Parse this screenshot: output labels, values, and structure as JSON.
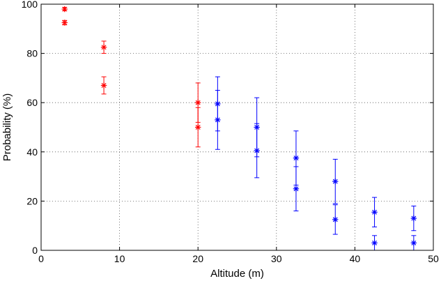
{
  "chart_data": {
    "type": "scatter",
    "xlabel": "Altitude (m)",
    "ylabel": "Probability (%)",
    "xlim": [
      0,
      50
    ],
    "ylim": [
      0,
      100
    ],
    "xticks": [
      0,
      10,
      20,
      30,
      40,
      50
    ],
    "yticks": [
      0,
      20,
      40,
      60,
      80,
      100
    ],
    "grid": true,
    "marker": "asterisk",
    "series": [
      {
        "color": "#ff0000",
        "points": [
          {
            "x": 3,
            "y": 98,
            "lo": 97.3,
            "hi": 98.7
          },
          {
            "x": 3,
            "y": 92.5,
            "lo": 91.6,
            "hi": 93.4
          },
          {
            "x": 8,
            "y": 82.5,
            "lo": 80,
            "hi": 85
          },
          {
            "x": 8,
            "y": 67,
            "lo": 63.5,
            "hi": 70.5
          },
          {
            "x": 20,
            "y": 60,
            "lo": 52,
            "hi": 68
          },
          {
            "x": 20,
            "y": 50,
            "lo": 42,
            "hi": 58
          }
        ]
      },
      {
        "color": "#0000ff",
        "points": [
          {
            "x": 22.5,
            "y": 59.5,
            "lo": 48.5,
            "hi": 70.5
          },
          {
            "x": 22.5,
            "y": 53,
            "lo": 41,
            "hi": 65
          },
          {
            "x": 27.5,
            "y": 50,
            "lo": 38,
            "hi": 62
          },
          {
            "x": 27.5,
            "y": 40.5,
            "lo": 29.5,
            "hi": 51.5
          },
          {
            "x": 32.5,
            "y": 37.5,
            "lo": 26.5,
            "hi": 48.5
          },
          {
            "x": 32.5,
            "y": 25,
            "lo": 16,
            "hi": 34
          },
          {
            "x": 37.5,
            "y": 28,
            "lo": 19,
            "hi": 37
          },
          {
            "x": 37.5,
            "y": 12.5,
            "lo": 6.5,
            "hi": 18.5
          },
          {
            "x": 42.5,
            "y": 15.5,
            "lo": 9.5,
            "hi": 21.5
          },
          {
            "x": 42.5,
            "y": 3,
            "lo": 0,
            "hi": 6
          },
          {
            "x": 47.5,
            "y": 13,
            "lo": 8,
            "hi": 18
          },
          {
            "x": 47.5,
            "y": 3,
            "lo": 0,
            "hi": 6
          }
        ]
      }
    ]
  }
}
